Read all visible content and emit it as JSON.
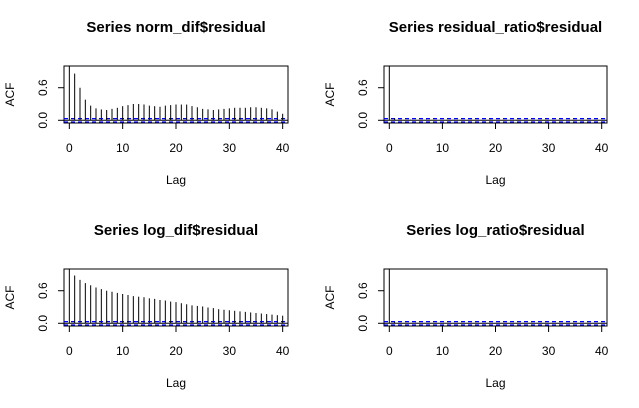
{
  "chart_data": [
    {
      "type": "bar",
      "title": "Series  norm_dif$residual",
      "xlabel": "Lag",
      "ylabel": "ACF",
      "xlim": [
        -1,
        41
      ],
      "ylim": [
        -0.05,
        1.0
      ],
      "xticks": [
        0,
        10,
        20,
        30,
        40
      ],
      "yticks": [
        0.0,
        0.6
      ],
      "ci": 0.03,
      "lags": [
        0,
        1,
        2,
        3,
        4,
        5,
        6,
        7,
        8,
        9,
        10,
        11,
        12,
        13,
        14,
        15,
        16,
        17,
        18,
        19,
        20,
        21,
        22,
        23,
        24,
        25,
        26,
        27,
        28,
        29,
        30,
        31,
        32,
        33,
        34,
        35,
        36,
        37,
        38,
        39,
        40
      ],
      "values": [
        1.0,
        0.86,
        0.6,
        0.38,
        0.27,
        0.22,
        0.2,
        0.19,
        0.21,
        0.23,
        0.26,
        0.28,
        0.3,
        0.3,
        0.29,
        0.27,
        0.26,
        0.25,
        0.27,
        0.28,
        0.29,
        0.29,
        0.29,
        0.26,
        0.24,
        0.21,
        0.2,
        0.19,
        0.2,
        0.21,
        0.22,
        0.23,
        0.23,
        0.23,
        0.24,
        0.24,
        0.23,
        0.22,
        0.2,
        0.16,
        0.12
      ]
    },
    {
      "type": "bar",
      "title": "Series  residual_ratio$residual",
      "xlabel": "Lag",
      "ylabel": "ACF",
      "xlim": [
        -1,
        41
      ],
      "ylim": [
        -0.05,
        1.0
      ],
      "xticks": [
        0,
        10,
        20,
        30,
        40
      ],
      "yticks": [
        0.0,
        0.6
      ],
      "ci": 0.03,
      "lags": [
        0,
        1,
        2,
        3,
        4,
        5,
        6,
        7,
        8,
        9,
        10,
        11,
        12,
        13,
        14,
        15,
        16,
        17,
        18,
        19,
        20,
        21,
        22,
        23,
        24,
        25,
        26,
        27,
        28,
        29,
        30,
        31,
        32,
        33,
        34,
        35,
        36,
        37,
        38,
        39,
        40
      ],
      "values": [
        1.0,
        0.04,
        0.01,
        0.0,
        0.01,
        0.0,
        0.0,
        0.01,
        0.0,
        0.0,
        0.0,
        0.0,
        0.01,
        0.0,
        0.0,
        0.0,
        0.0,
        0.0,
        0.0,
        0.01,
        0.0,
        0.0,
        0.0,
        0.0,
        0.0,
        0.0,
        0.0,
        0.0,
        0.0,
        0.0,
        0.0,
        0.0,
        0.0,
        0.0,
        0.0,
        0.0,
        0.0,
        0.0,
        0.0,
        0.0,
        0.0
      ]
    },
    {
      "type": "bar",
      "title": "Series  log_dif$residual",
      "xlabel": "Lag",
      "ylabel": "ACF",
      "xlim": [
        -1,
        41
      ],
      "ylim": [
        -0.05,
        1.0
      ],
      "xticks": [
        0,
        10,
        20,
        30,
        40
      ],
      "yticks": [
        0.0,
        0.6
      ],
      "ci": 0.03,
      "lags": [
        0,
        1,
        2,
        3,
        4,
        5,
        6,
        7,
        8,
        9,
        10,
        11,
        12,
        13,
        14,
        15,
        16,
        17,
        18,
        19,
        20,
        21,
        22,
        23,
        24,
        25,
        26,
        27,
        28,
        29,
        30,
        31,
        32,
        33,
        34,
        35,
        36,
        37,
        38,
        39,
        40
      ],
      "values": [
        1.0,
        0.88,
        0.8,
        0.74,
        0.7,
        0.66,
        0.63,
        0.6,
        0.58,
        0.56,
        0.54,
        0.52,
        0.5,
        0.49,
        0.48,
        0.46,
        0.45,
        0.43,
        0.42,
        0.4,
        0.39,
        0.37,
        0.35,
        0.33,
        0.32,
        0.31,
        0.29,
        0.28,
        0.26,
        0.25,
        0.24,
        0.23,
        0.22,
        0.21,
        0.2,
        0.19,
        0.18,
        0.17,
        0.16,
        0.15,
        0.14
      ]
    },
    {
      "type": "bar",
      "title": "Series  log_ratio$residual",
      "xlabel": "Lag",
      "ylabel": "ACF",
      "xlim": [
        -1,
        41
      ],
      "ylim": [
        -0.05,
        1.0
      ],
      "xticks": [
        0,
        10,
        20,
        30,
        40
      ],
      "yticks": [
        0.0,
        0.6
      ],
      "ci": 0.03,
      "lags": [
        0,
        1,
        2,
        3,
        4,
        5,
        6,
        7,
        8,
        9,
        10,
        11,
        12,
        13,
        14,
        15,
        16,
        17,
        18,
        19,
        20,
        21,
        22,
        23,
        24,
        25,
        26,
        27,
        28,
        29,
        30,
        31,
        32,
        33,
        34,
        35,
        36,
        37,
        38,
        39,
        40
      ],
      "values": [
        1.0,
        0.03,
        0.01,
        0.0,
        0.0,
        0.01,
        0.0,
        0.0,
        0.0,
        0.0,
        0.0,
        0.0,
        0.0,
        0.0,
        0.0,
        0.0,
        0.0,
        0.0,
        0.0,
        0.0,
        0.0,
        0.0,
        0.0,
        0.0,
        0.0,
        0.0,
        0.0,
        0.0,
        0.0,
        0.0,
        0.0,
        0.0,
        0.0,
        0.0,
        0.0,
        0.0,
        0.0,
        0.0,
        0.0,
        0.0,
        0.0
      ]
    }
  ],
  "colors": {
    "bar": "#000000",
    "ci_line": "#0000ff",
    "zero_line": "#000000",
    "axis": "#000000"
  }
}
